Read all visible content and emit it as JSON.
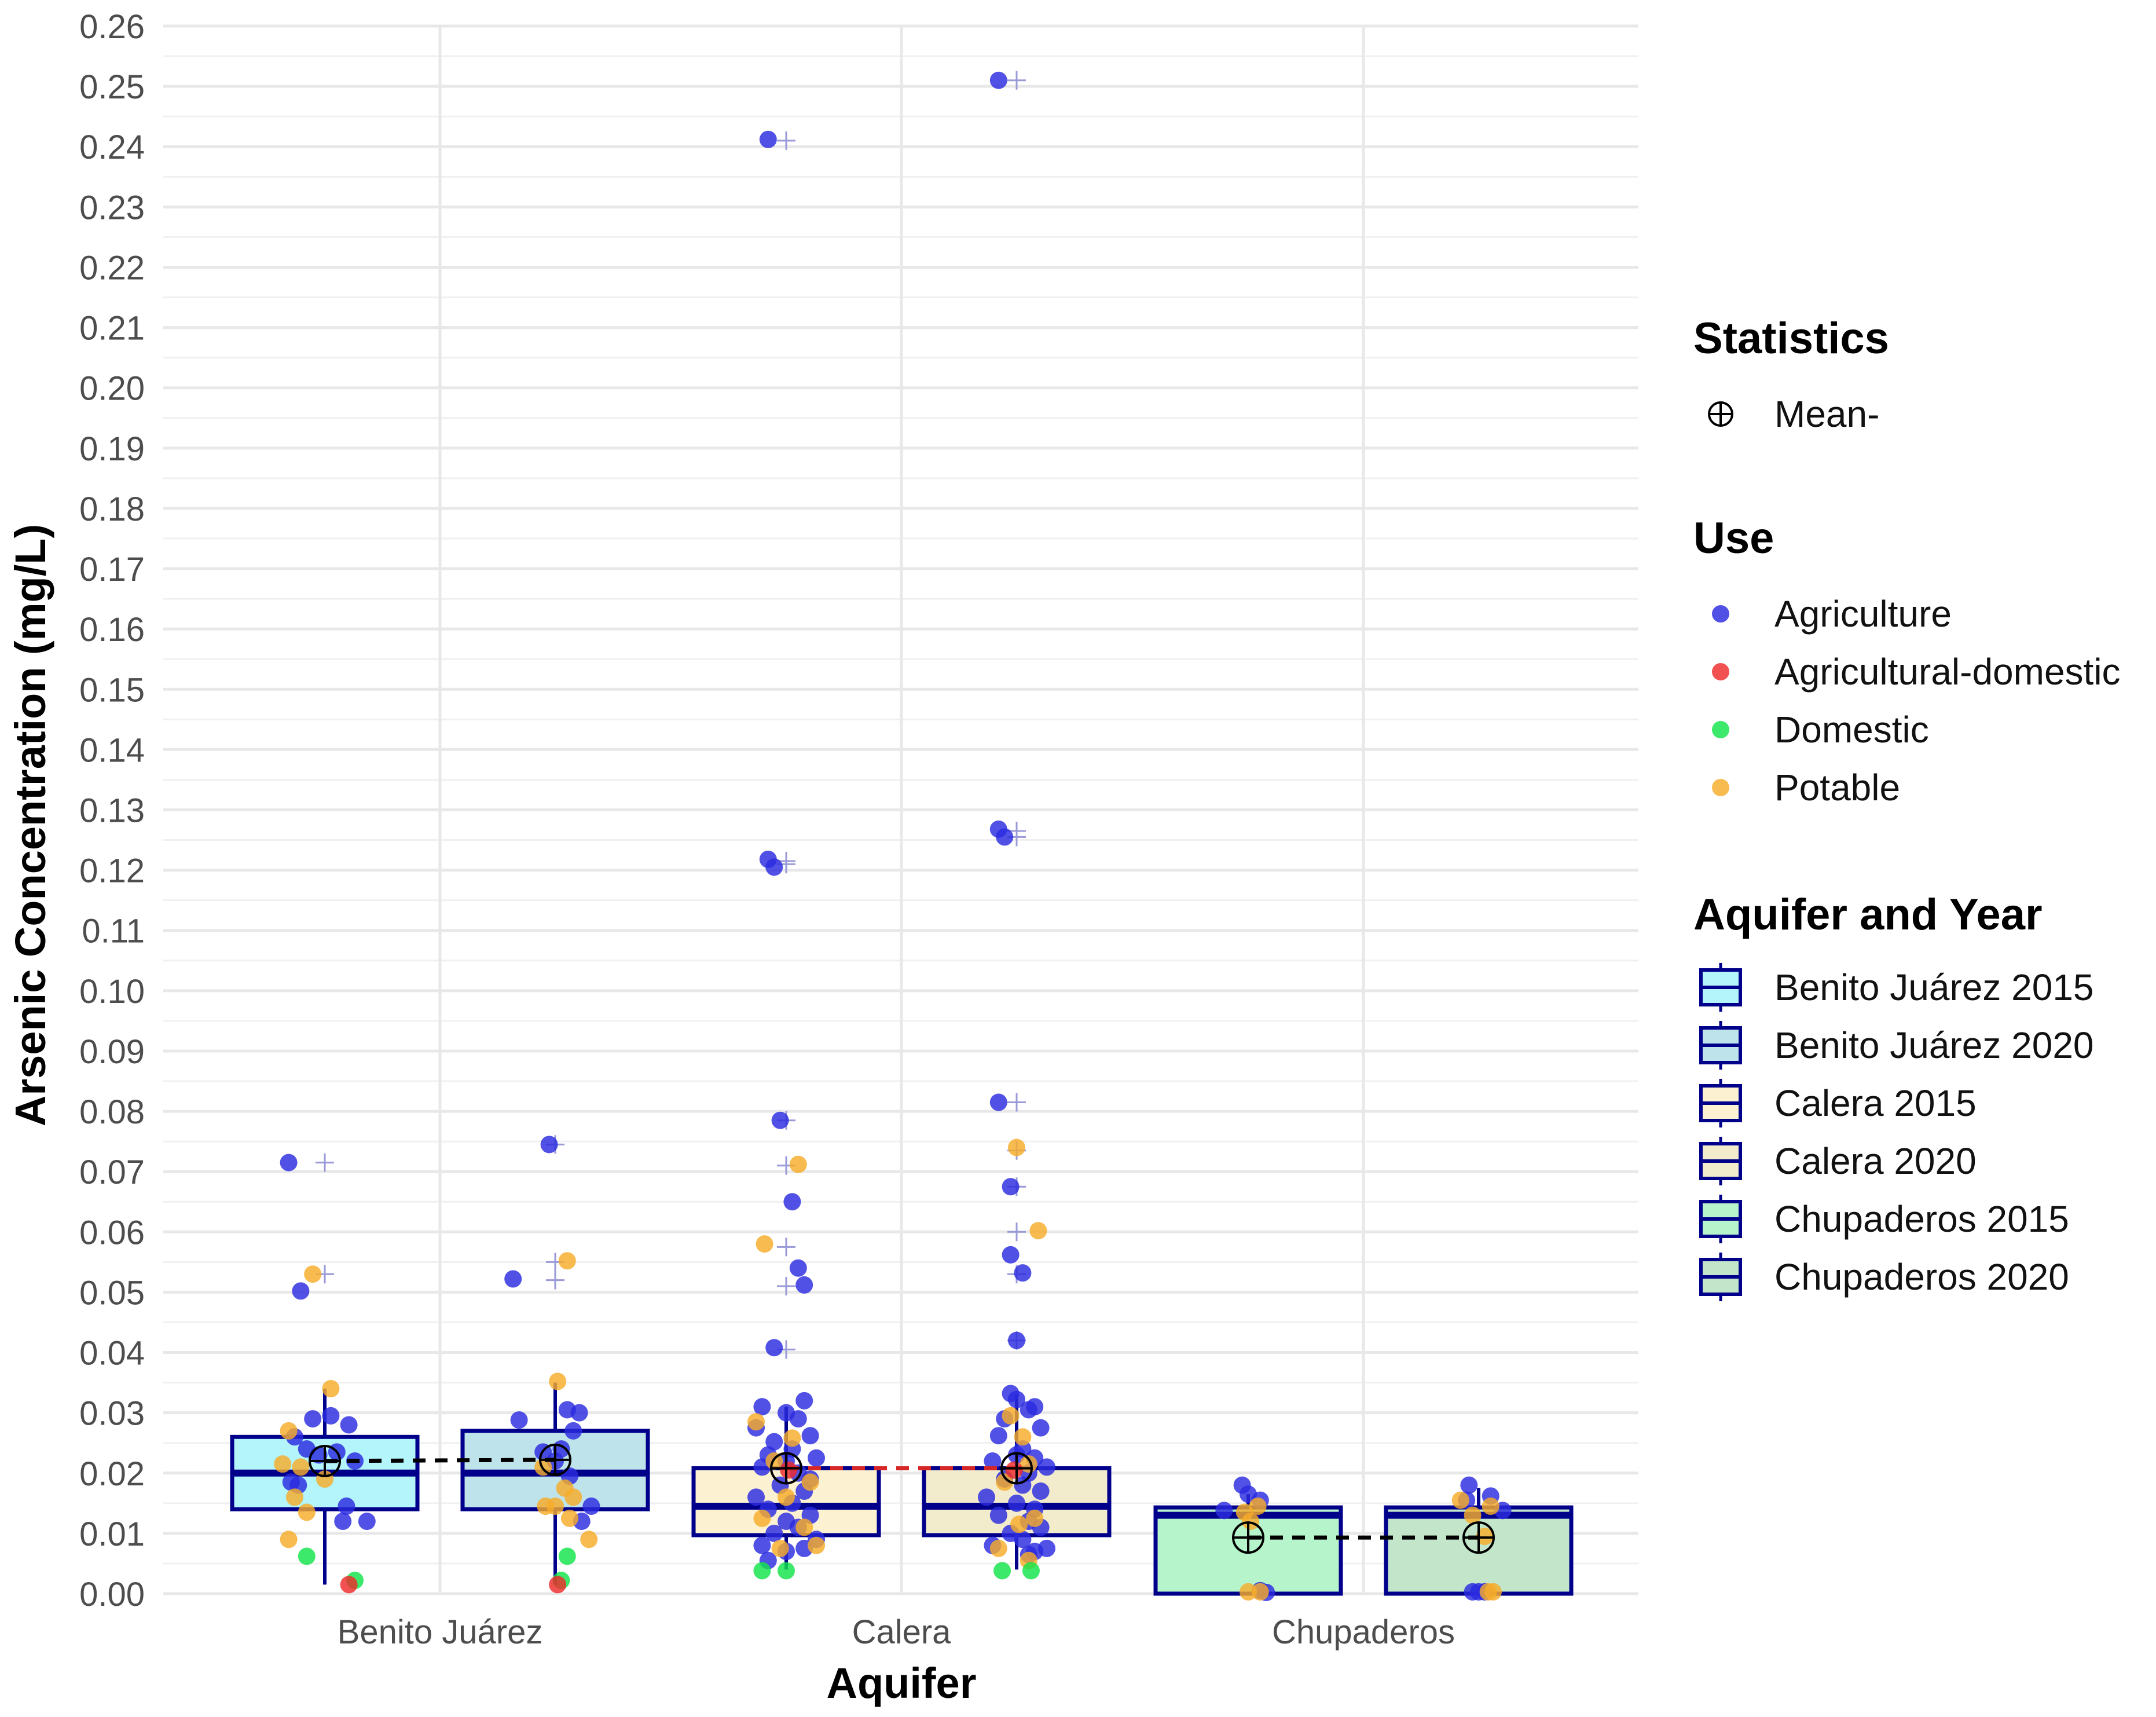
{
  "chart_data": {
    "type": "box",
    "xlabel": "Aquifer",
    "ylabel": "Arsenic Concentration (mg/L)",
    "ylim": [
      0,
      0.26
    ],
    "y_ticks": [
      "0.00",
      "0.01",
      "0.02",
      "0.03",
      "0.04",
      "0.05",
      "0.06",
      "0.07",
      "0.08",
      "0.09",
      "0.10",
      "0.11",
      "0.12",
      "0.13",
      "0.14",
      "0.15",
      "0.16",
      "0.17",
      "0.18",
      "0.19",
      "0.20",
      "0.21",
      "0.22",
      "0.23",
      "0.24",
      "0.25",
      "0.26"
    ],
    "categories": [
      "Benito Juárez",
      "Calera",
      "Chupaderos"
    ],
    "boxes": [
      {
        "group": "Benito Juárez 2015",
        "category": "Benito Juárez",
        "slot": 0,
        "q1": 0.014,
        "median": 0.02,
        "q3": 0.026,
        "whisker_low": 0.0015,
        "whisker_high": 0.034,
        "mean": 0.022,
        "fill": "#b3f5fa"
      },
      {
        "group": "Benito Juárez 2020",
        "category": "Benito Juárez",
        "slot": 1,
        "q1": 0.014,
        "median": 0.02,
        "q3": 0.027,
        "whisker_low": 0.0015,
        "whisker_high": 0.035,
        "mean": 0.0222,
        "fill": "#bfe3ea"
      },
      {
        "group": "Calera 2015",
        "category": "Calera",
        "slot": 0,
        "q1": 0.0097,
        "median": 0.0145,
        "q3": 0.0208,
        "whisker_low": 0.004,
        "whisker_high": 0.031,
        "mean": 0.0208,
        "fill": "#fcf2d2"
      },
      {
        "group": "Calera 2020",
        "category": "Calera",
        "slot": 1,
        "q1": 0.0097,
        "median": 0.0145,
        "q3": 0.0208,
        "whisker_low": 0.004,
        "whisker_high": 0.033,
        "mean": 0.0208,
        "fill": "#f2eccd"
      },
      {
        "group": "Chupaderos 2015",
        "category": "Chupaderos",
        "slot": 0,
        "q1": 0.0,
        "median": 0.013,
        "q3": 0.0143,
        "whisker_low": 0.0,
        "whisker_high": 0.0165,
        "mean": 0.0093,
        "fill": "#b6f5cb"
      },
      {
        "group": "Chupaderos 2020",
        "category": "Chupaderos",
        "slot": 1,
        "q1": 0.0,
        "median": 0.013,
        "q3": 0.0143,
        "whisker_low": 0.0,
        "whisker_high": 0.0175,
        "mean": 0.0093,
        "fill": "#c3e6ca"
      }
    ],
    "mean_lines": [
      {
        "category": "Benito Juárez",
        "from": 0.022,
        "to": 0.0222,
        "color": "#000000"
      },
      {
        "category": "Calera",
        "from": 0.0208,
        "to": 0.0208,
        "color": "#d62728"
      },
      {
        "category": "Chupaderos",
        "from": 0.0093,
        "to": 0.0093,
        "color": "#000000"
      }
    ],
    "outliers": [
      {
        "category": "Benito Juárez",
        "slot": 0,
        "values": [
          0.0715,
          0.053
        ]
      },
      {
        "category": "Benito Juárez",
        "slot": 1,
        "values": [
          0.0745,
          0.055,
          0.052
        ]
      },
      {
        "category": "Calera",
        "slot": 0,
        "values": [
          0.241,
          0.121,
          0.1215,
          0.0785,
          0.071,
          0.0575,
          0.051,
          0.0405
        ]
      },
      {
        "category": "Calera",
        "slot": 1,
        "values": [
          0.251,
          0.1265,
          0.1255,
          0.0815,
          0.0735,
          0.0675,
          0.06,
          0.053,
          0.042
        ]
      }
    ],
    "points": [
      {
        "category": "Benito Juárez",
        "slot": 0,
        "use": "Agriculture",
        "dx": [
          -0.3,
          -0.2,
          -0.1,
          0.05,
          0.2,
          -0.25,
          -0.15,
          -0.05,
          0.1,
          0.25,
          -0.22,
          0.18,
          0.35,
          -0.28,
          0.15
        ],
        "values": [
          0.0715,
          0.0502,
          0.029,
          0.0295,
          0.028,
          0.026,
          0.024,
          0.023,
          0.0235,
          0.022,
          0.018,
          0.0145,
          0.012,
          0.0185,
          0.012
        ]
      },
      {
        "category": "Benito Juárez",
        "slot": 0,
        "use": "Potable",
        "dx": [
          -0.1,
          0.05,
          -0.3,
          -0.2,
          0.0,
          -0.35,
          -0.25,
          -0.15,
          -0.3
        ],
        "values": [
          0.053,
          0.034,
          0.027,
          0.021,
          0.019,
          0.0215,
          0.016,
          0.0135,
          0.009
        ]
      },
      {
        "category": "Benito Juárez",
        "slot": 0,
        "use": "Domestic",
        "dx": [
          -0.15,
          0.25
        ],
        "values": [
          0.0062,
          0.0022
        ]
      },
      {
        "category": "Benito Juárez",
        "slot": 0,
        "use": "Agricultural-domestic",
        "dx": [
          0.2
        ],
        "values": [
          0.0015
        ]
      },
      {
        "category": "Benito Juárez",
        "slot": 1,
        "use": "Agriculture",
        "dx": [
          -0.05,
          -0.35,
          -0.3,
          0.1,
          0.2,
          0.15,
          0.05,
          -0.1,
          0.3,
          0.12,
          0.0,
          0.22
        ],
        "values": [
          0.0745,
          0.0522,
          0.0288,
          0.0305,
          0.03,
          0.027,
          0.024,
          0.0235,
          0.0145,
          0.0195,
          0.022,
          0.012
        ]
      },
      {
        "category": "Benito Juárez",
        "slot": 1,
        "use": "Potable",
        "dx": [
          0.1,
          0.02,
          -0.1,
          0.08,
          0.15,
          0.0,
          -0.08,
          0.12,
          0.28
        ],
        "values": [
          0.0552,
          0.0352,
          0.021,
          0.0175,
          0.016,
          0.0145,
          0.0145,
          0.0125,
          0.009
        ]
      },
      {
        "category": "Benito Juárez",
        "slot": 1,
        "use": "Domestic",
        "dx": [
          0.1,
          0.05
        ],
        "values": [
          0.0062,
          0.0022
        ]
      },
      {
        "category": "Benito Juárez",
        "slot": 1,
        "use": "Agricultural-domestic",
        "dx": [
          0.02
        ],
        "values": [
          0.0015
        ]
      },
      {
        "category": "Calera",
        "slot": 0,
        "use": "Agriculture",
        "dx": [
          -0.15,
          -0.15,
          -0.1,
          -0.05,
          0.05,
          0.1,
          0.15,
          -0.1,
          0.15,
          -0.2,
          0.0,
          0.1,
          -0.25,
          0.2,
          -0.1,
          0.05,
          -0.15,
          0.25,
          0.0,
          -0.2,
          0.1,
          0.2,
          -0.05,
          0.15,
          -0.25,
          0.05,
          -0.15,
          0.2,
          0.0,
          0.1,
          -0.1,
          0.25,
          -0.2,
          0.15,
          0.0,
          -0.15
        ],
        "values": [
          0.2412,
          0.1218,
          0.1205,
          0.0785,
          0.065,
          0.054,
          0.0512,
          0.0408,
          0.032,
          0.031,
          0.03,
          0.029,
          0.0275,
          0.0262,
          0.0252,
          0.024,
          0.023,
          0.0225,
          0.022,
          0.021,
          0.02,
          0.019,
          0.018,
          0.017,
          0.016,
          0.015,
          0.014,
          0.013,
          0.012,
          0.011,
          0.01,
          0.009,
          0.008,
          0.0075,
          0.007,
          0.0055
        ]
      },
      {
        "category": "Calera",
        "slot": 0,
        "use": "Potable",
        "dx": [
          0.1,
          -0.18,
          -0.25,
          0.05,
          -0.1,
          0.2,
          0.0,
          -0.2,
          0.15,
          -0.05,
          0.25
        ],
        "values": [
          0.0712,
          0.058,
          0.0285,
          0.0258,
          0.022,
          0.0185,
          0.016,
          0.0125,
          0.011,
          0.0075,
          0.008
        ]
      },
      {
        "category": "Calera",
        "slot": 0,
        "use": "Domestic",
        "dx": [
          -0.2,
          0.0
        ],
        "values": [
          0.0038,
          0.0038
        ]
      },
      {
        "category": "Calera",
        "slot": 0,
        "use": "Agricultural-domestic",
        "dx": [
          0.02
        ],
        "values": [
          0.0205
        ]
      },
      {
        "category": "Calera",
        "slot": 1,
        "use": "Agriculture",
        "dx": [
          -0.15,
          -0.15,
          -0.1,
          -0.15,
          -0.05,
          -0.05,
          0.0,
          0.05,
          0.15,
          -0.05,
          0.0,
          0.1,
          -0.1,
          0.2,
          -0.15,
          0.05,
          0.0,
          0.15,
          -0.2,
          0.25,
          0.1,
          -0.1,
          0.05,
          0.2,
          -0.25,
          0.0,
          0.15,
          -0.15,
          0.1,
          0.2,
          -0.05,
          0.05,
          -0.2,
          0.25,
          0.15,
          0.1
        ],
        "values": [
          0.251,
          0.1268,
          0.1255,
          0.0815,
          0.0675,
          0.0562,
          0.042,
          0.0532,
          0.031,
          0.0332,
          0.0322,
          0.0305,
          0.029,
          0.0275,
          0.0262,
          0.024,
          0.023,
          0.0225,
          0.022,
          0.021,
          0.02,
          0.019,
          0.018,
          0.017,
          0.016,
          0.015,
          0.014,
          0.013,
          0.012,
          0.011,
          0.01,
          0.009,
          0.008,
          0.0075,
          0.007,
          0.0065
        ]
      },
      {
        "category": "Calera",
        "slot": 1,
        "use": "Potable",
        "dx": [
          0.0,
          0.18,
          -0.05,
          0.05,
          0.1,
          -0.1,
          0.15,
          0.02,
          -0.15,
          0.1
        ],
        "values": [
          0.074,
          0.0602,
          0.0295,
          0.026,
          0.0215,
          0.0185,
          0.0125,
          0.0115,
          0.0075,
          0.0055
        ]
      },
      {
        "category": "Calera",
        "slot": 1,
        "use": "Domestic",
        "dx": [
          -0.12,
          0.12
        ],
        "values": [
          0.0038,
          0.0038
        ]
      },
      {
        "category": "Calera",
        "slot": 1,
        "use": "Agricultural-domestic",
        "dx": [
          -0.02
        ],
        "values": [
          0.0205
        ]
      },
      {
        "category": "Chupaderos",
        "slot": 0,
        "use": "Agriculture",
        "dx": [
          -0.05,
          0.0,
          0.1,
          -0.2,
          0.1,
          0.15
        ],
        "values": [
          0.018,
          0.0165,
          0.0155,
          0.0138,
          0.0005,
          0.0002
        ]
      },
      {
        "category": "Chupaderos",
        "slot": 0,
        "use": "Potable",
        "dx": [
          0.08,
          -0.03,
          0.02,
          0.0,
          0.1
        ],
        "values": [
          0.0145,
          0.0135,
          0.012,
          0.0003,
          0.0003
        ]
      },
      {
        "category": "Chupaderos",
        "slot": 1,
        "use": "Agriculture",
        "dx": [
          -0.08,
          0.1,
          -0.1,
          0.2,
          -0.05,
          0.0,
          0.05
        ],
        "values": [
          0.018,
          0.0162,
          0.0155,
          0.0138,
          0.0003,
          0.0003,
          0.0003
        ]
      },
      {
        "category": "Chupaderos",
        "slot": 1,
        "use": "Potable",
        "dx": [
          -0.15,
          -0.05,
          0.05,
          0.1,
          0.08,
          0.12
        ],
        "values": [
          0.0155,
          0.013,
          0.0095,
          0.0145,
          0.0003,
          0.0003
        ]
      }
    ],
    "use_colors": {
      "Agriculture": "#2b2bdf",
      "Agricultural-domestic": "#ee2b2b",
      "Domestic": "#12e44a",
      "Potable": "#f6ac2a"
    },
    "box_stroke": "#00008b",
    "grid": true,
    "legend_position": "right",
    "legend": {
      "statistics_title": "Statistics",
      "statistics_items": [
        {
          "label": "Mean-",
          "symbol": "⊕"
        }
      ],
      "use_title": "Use",
      "use_items": [
        {
          "label": "Agriculture",
          "color": "#2b2bdf"
        },
        {
          "label": "Agricultural-domestic",
          "color": "#ee2b2b"
        },
        {
          "label": "Domestic",
          "color": "#12e44a"
        },
        {
          "label": "Potable",
          "color": "#f6ac2a"
        }
      ],
      "aquifer_title": "Aquifer and Year",
      "aquifer_items": [
        {
          "label": "Benito Juárez 2015",
          "fill": "#b3f5fa"
        },
        {
          "label": "Benito Juárez 2020",
          "fill": "#bfe3ea"
        },
        {
          "label": "Calera 2015",
          "fill": "#fcf2d2"
        },
        {
          "label": "Calera 2020",
          "fill": "#f2eccd"
        },
        {
          "label": "Chupaderos 2015",
          "fill": "#b6f5cb"
        },
        {
          "label": "Chupaderos 2020",
          "fill": "#c3e6ca"
        }
      ]
    }
  }
}
